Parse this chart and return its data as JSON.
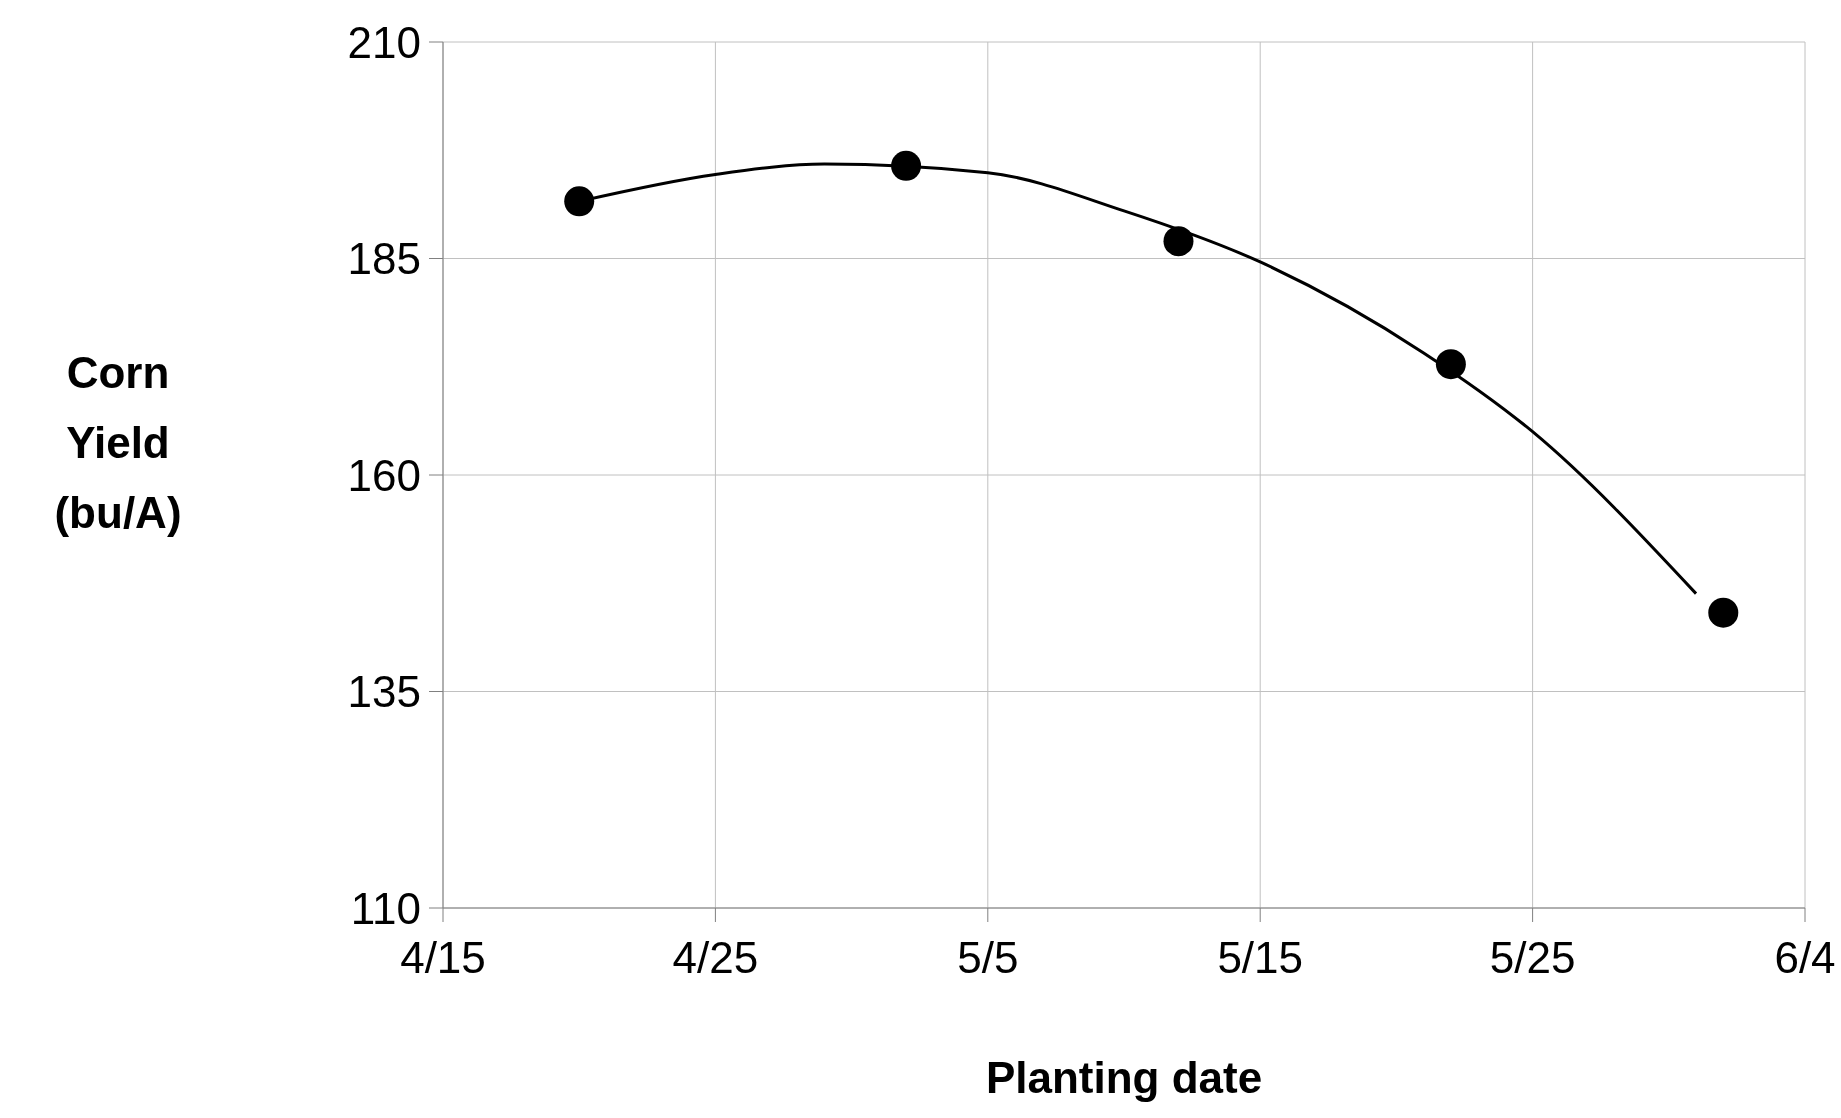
{
  "chart_data": {
    "type": "scatter",
    "xlabel": "Planting date",
    "ylabel": "Corn Yield (bu/A)",
    "xlim": [
      "--04-15",
      "--06-04"
    ],
    "xticks": [
      {
        "value": "--04-15",
        "label": "4/15"
      },
      {
        "value": "--04-25",
        "label": "4/25"
      },
      {
        "value": "--05-05",
        "label": "5/5"
      },
      {
        "value": "--05-15",
        "label": "5/15"
      },
      {
        "value": "--05-25",
        "label": "5/25"
      },
      {
        "value": "--06-04",
        "label": "6/4"
      }
    ],
    "ylim": [
      110,
      210
    ],
    "yticks": [
      110,
      135,
      160,
      185,
      210
    ],
    "grid": true,
    "legend": false,
    "series": [
      {
        "type": "line",
        "marker": "none",
        "line_style": "solid",
        "color": "#000000",
        "x": [
          "--04-20",
          "--04-25",
          "--04-29",
          "--05-05",
          "--05-10",
          "--05-15",
          "--05-21",
          "--05-25",
          "--05-31"
        ],
        "values": [
          191.6,
          194.7,
          195.9,
          194.9,
          190.5,
          184.6,
          174.1,
          165.0,
          146.3
        ]
      },
      {
        "marker": "circle",
        "color": "#000000",
        "x": [
          "--04-20",
          "--05-02",
          "--05-12",
          "--05-22",
          "--06-01"
        ],
        "values": [
          191.6,
          195.7,
          187.0,
          172.8,
          144.1
        ]
      }
    ]
  }
}
